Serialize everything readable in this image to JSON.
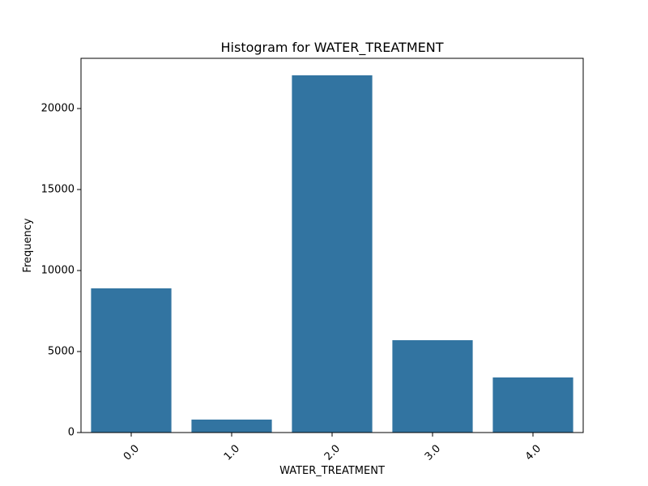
{
  "chart_data": {
    "type": "bar",
    "title": "Histogram for WATER_TREATMENT",
    "xlabel": "WATER_TREATMENT",
    "ylabel": "Frequency",
    "categories": [
      "0.0",
      "1.0",
      "2.0",
      "3.0",
      "4.0"
    ],
    "values": [
      8900,
      800,
      22050,
      5700,
      3400
    ],
    "ylim": [
      0,
      23100
    ],
    "yticks": [
      0,
      5000,
      10000,
      15000,
      20000
    ],
    "bar_color": "#3274a1",
    "grid": false,
    "legend": "none"
  }
}
